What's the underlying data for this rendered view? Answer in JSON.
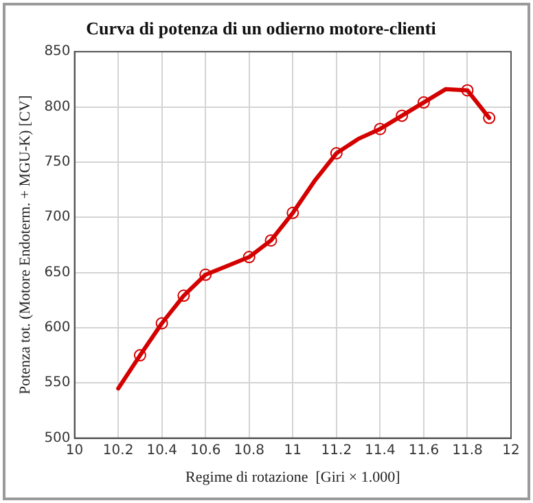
{
  "chart_data": {
    "type": "line",
    "title": "Curva di potenza di un odierno motore-clienti",
    "xlabel": "Regime di rotazione  [Giri × 1.000]",
    "ylabel": "Potenza tot. (Motore Endoterm. + MGU-K) [CV]",
    "xlim": [
      10,
      12
    ],
    "xticks": [
      10,
      10.2,
      10.4,
      10.6,
      10.8,
      11,
      11.2,
      11.4,
      11.6,
      11.8,
      12
    ],
    "ylim": [
      500,
      850
    ],
    "yticks": [
      500,
      550,
      600,
      650,
      700,
      750,
      800,
      850
    ],
    "grid": true,
    "legend": false,
    "series": [
      {
        "color": "#d40000",
        "marker": "none",
        "x": [
          10.2,
          10.3,
          10.4,
          10.5,
          10.6,
          10.7,
          10.8,
          10.9,
          11.0,
          11.1,
          11.2,
          11.3,
          11.4,
          11.5,
          11.6,
          11.7,
          11.8,
          11.9
        ],
        "values": [
          545,
          575,
          604,
          629,
          648,
          656,
          664,
          679,
          704,
          733,
          758,
          771,
          780,
          792,
          804,
          816,
          815,
          790
        ]
      },
      {
        "type": "scatter",
        "color": "#d40000",
        "marker": "circle",
        "x": [
          10.3,
          10.4,
          10.5,
          10.6,
          10.8,
          10.9,
          11.0,
          11.2,
          11.4,
          11.5,
          11.6,
          11.8,
          11.9
        ],
        "values": [
          575,
          604,
          629,
          648,
          664,
          679,
          704,
          758,
          780,
          792,
          804,
          815,
          790
        ]
      }
    ]
  }
}
